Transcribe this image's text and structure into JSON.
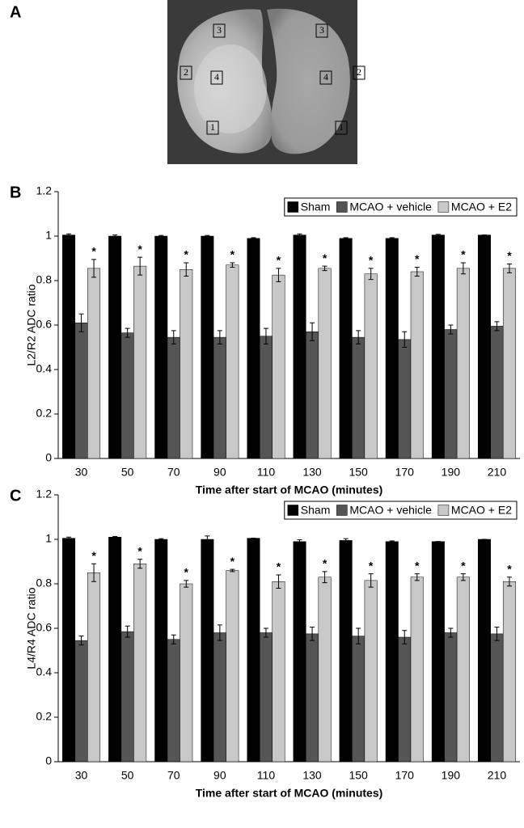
{
  "image_panel": {
    "panel": "A",
    "regions": [
      "3",
      "3",
      "2",
      "4",
      "4",
      "2",
      "1",
      "1"
    ]
  },
  "chart_data": [
    {
      "type": "bar",
      "panel": "B",
      "xlabel": "Time after start of MCAO (minutes)",
      "ylabel": "L2/R2 ADC ratio",
      "categories": [
        "30",
        "50",
        "70",
        "90",
        "110",
        "130",
        "150",
        "170",
        "190",
        "210"
      ],
      "series": [
        {
          "name": "Sham",
          "color": "#000000",
          "values": [
            1.005,
            1.0,
            1.0,
            1.0,
            0.99,
            1.005,
            0.99,
            0.99,
            1.005,
            1.005
          ],
          "errors": [
            0.005,
            0.005,
            0.003,
            0.003,
            0.003,
            0.005,
            0.003,
            0.003,
            0.003,
            0.0
          ]
        },
        {
          "name": "MCAO + vehicle",
          "color": "#555555",
          "values": [
            0.61,
            0.565,
            0.545,
            0.545,
            0.55,
            0.57,
            0.545,
            0.535,
            0.58,
            0.595
          ],
          "errors": [
            0.04,
            0.02,
            0.03,
            0.03,
            0.035,
            0.04,
            0.03,
            0.035,
            0.02,
            0.02
          ]
        },
        {
          "name": "MCAO + E2",
          "color": "#c8c8c8",
          "values": [
            0.855,
            0.865,
            0.85,
            0.87,
            0.825,
            0.855,
            0.83,
            0.84,
            0.855,
            0.855
          ],
          "errors": [
            0.04,
            0.04,
            0.03,
            0.01,
            0.03,
            0.01,
            0.025,
            0.02,
            0.025,
            0.02
          ],
          "markers": [
            "*",
            "*",
            "*",
            "*",
            "*",
            "*",
            "*",
            "*",
            "*",
            "*"
          ]
        }
      ],
      "ylim": [
        0,
        1.2
      ],
      "yticks": [
        0,
        0.2,
        0.4,
        0.6,
        0.8,
        1,
        1.2
      ],
      "legend": "upper right"
    },
    {
      "type": "bar",
      "panel": "C",
      "xlabel": "Time after start of MCAO (minutes)",
      "ylabel": "L4/R4 ADC ratio",
      "categories": [
        "30",
        "50",
        "70",
        "90",
        "110",
        "130",
        "150",
        "170",
        "190",
        "210"
      ],
      "series": [
        {
          "name": "Sham",
          "color": "#000000",
          "values": [
            1.005,
            1.01,
            1.0,
            1.0,
            1.005,
            0.99,
            0.995,
            0.99,
            0.99,
            1.0
          ],
          "errors": [
            0.005,
            0.003,
            0.003,
            0.015,
            0.0,
            0.008,
            0.008,
            0.003,
            0.0,
            0.0
          ]
        },
        {
          "name": "MCAO + vehicle",
          "color": "#555555",
          "values": [
            0.545,
            0.585,
            0.55,
            0.58,
            0.58,
            0.575,
            0.565,
            0.56,
            0.58,
            0.575
          ],
          "errors": [
            0.02,
            0.025,
            0.02,
            0.035,
            0.02,
            0.03,
            0.035,
            0.03,
            0.02,
            0.03
          ]
        },
        {
          "name": "MCAO + E2",
          "color": "#c8c8c8",
          "values": [
            0.85,
            0.89,
            0.8,
            0.86,
            0.81,
            0.83,
            0.815,
            0.83,
            0.83,
            0.81
          ],
          "errors": [
            0.04,
            0.02,
            0.015,
            0.005,
            0.03,
            0.025,
            0.03,
            0.015,
            0.015,
            0.02
          ],
          "markers": [
            "*",
            "*",
            "*",
            "*",
            "*",
            "*",
            "*",
            "*",
            "*",
            "*"
          ]
        }
      ],
      "ylim": [
        0,
        1.2
      ],
      "yticks": [
        0,
        0.2,
        0.4,
        0.6,
        0.8,
        1,
        1.2
      ],
      "legend": "upper right"
    }
  ]
}
